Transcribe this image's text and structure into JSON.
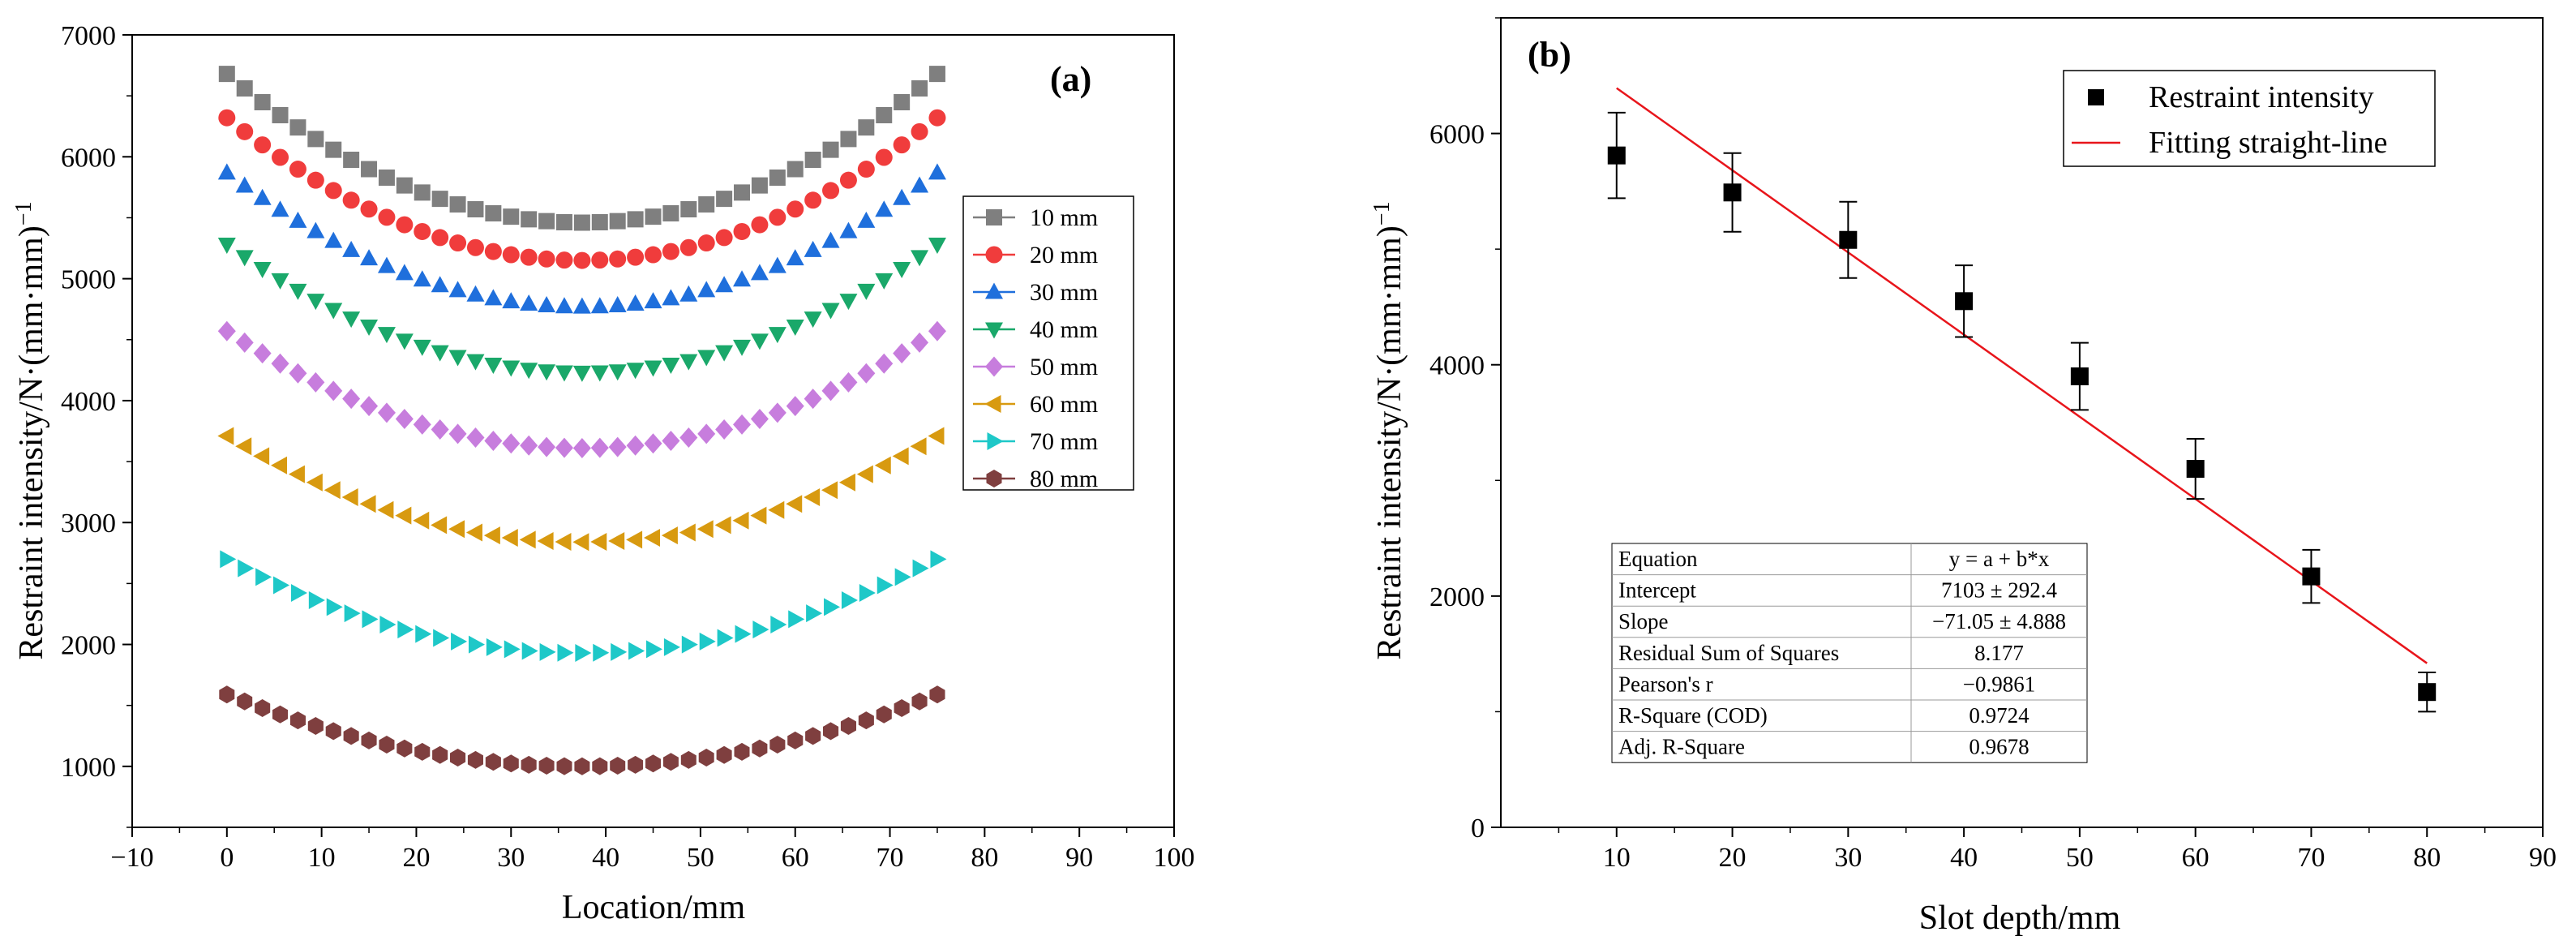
{
  "chart_data": [
    {
      "type": "scatter",
      "panel_label": "(a)",
      "xlabel": "Location/mm",
      "ylabel": "Restraint intensity/N·(mm·mm)",
      "ylabel_sup": "−1",
      "xlim": [
        -10,
        100
      ],
      "ylim": [
        500,
        7000
      ],
      "xticks": [
        -10,
        0,
        10,
        20,
        30,
        40,
        50,
        60,
        70,
        80,
        90,
        100
      ],
      "xtick_labels": [
        "−10",
        "0",
        "10",
        "20",
        "30",
        "40",
        "50",
        "60",
        "70",
        "80",
        "90",
        "100"
      ],
      "yticks": [
        1000,
        2000,
        3000,
        4000,
        5000,
        6000,
        7000
      ],
      "ytick_labels": [
        "1000",
        "2000",
        "3000",
        "4000",
        "5000",
        "6000",
        "7000"
      ],
      "legend_position": "right",
      "curve_x_range": [
        0,
        75
      ],
      "curve_min_x": 37.5,
      "points_per_series": 41,
      "series": [
        {
          "name": "10 mm",
          "edge_value": 6680,
          "min_value": 5460,
          "color": "#7f7f7f",
          "marker": "square"
        },
        {
          "name": "20 mm",
          "edge_value": 6320,
          "min_value": 5150,
          "color": "#f03c3c",
          "marker": "circle"
        },
        {
          "name": "30 mm",
          "edge_value": 5870,
          "min_value": 4770,
          "color": "#1f6fdc",
          "marker": "triangle-up"
        },
        {
          "name": "40 mm",
          "edge_value": 5280,
          "min_value": 4230,
          "color": "#1aa86a",
          "marker": "triangle-down"
        },
        {
          "name": "50 mm",
          "edge_value": 4570,
          "min_value": 3610,
          "color": "#c77ddd",
          "marker": "diamond"
        },
        {
          "name": "60 mm",
          "edge_value": 3710,
          "min_value": 2840,
          "color": "#d89a10",
          "marker": "triangle-left"
        },
        {
          "name": "70 mm",
          "edge_value": 2700,
          "min_value": 1930,
          "color": "#1ec8c8",
          "marker": "triangle-right"
        },
        {
          "name": "80 mm",
          "edge_value": 1590,
          "min_value": 1000,
          "color": "#7f3f3f",
          "marker": "hexagon"
        }
      ]
    },
    {
      "type": "scatter",
      "panel_label": "(b)",
      "xlabel": "Slot depth/mm",
      "ylabel": "Restraint intensity/N·(mm·mm)",
      "ylabel_sup": "−1",
      "xlim": [
        0,
        90
      ],
      "ylim": [
        0,
        7000
      ],
      "xticks": [
        10,
        20,
        30,
        40,
        50,
        60,
        70,
        80,
        90
      ],
      "xtick_labels": [
        "10",
        "20",
        "30",
        "40",
        "50",
        "60",
        "70",
        "80",
        "90"
      ],
      "yticks": [
        0,
        2000,
        4000,
        6000
      ],
      "ytick_labels": [
        "0",
        "2000",
        "4000",
        "6000"
      ],
      "legend_position": "top-right",
      "series": [
        {
          "name": "Restraint intensity",
          "marker": "square",
          "color": "#000000",
          "x": [
            10,
            20,
            30,
            40,
            50,
            60,
            70,
            80
          ],
          "y": [
            5810,
            5490,
            5080,
            4550,
            3900,
            3100,
            2170,
            1170
          ],
          "error": [
            370,
            340,
            330,
            310,
            290,
            260,
            230,
            170
          ]
        },
        {
          "name": "Fitting straight-line",
          "type": "line",
          "color": "#e8151b",
          "x": [
            10,
            80
          ],
          "y": [
            6392.5,
            1419
          ]
        }
      ],
      "fit_table": [
        {
          "label": "Equation",
          "value": "y = a + b*x"
        },
        {
          "label": "Intercept",
          "value": "7103 ± 292.4"
        },
        {
          "label": "Slope",
          "value": "−71.05 ± 4.888"
        },
        {
          "label": "Residual Sum of Squares",
          "value": "8.177"
        },
        {
          "label": "Pearson's r",
          "value": "−0.9861"
        },
        {
          "label": "R-Square (COD)",
          "value": "0.9724"
        },
        {
          "label": "Adj. R-Square",
          "value": "0.9678"
        }
      ]
    }
  ]
}
